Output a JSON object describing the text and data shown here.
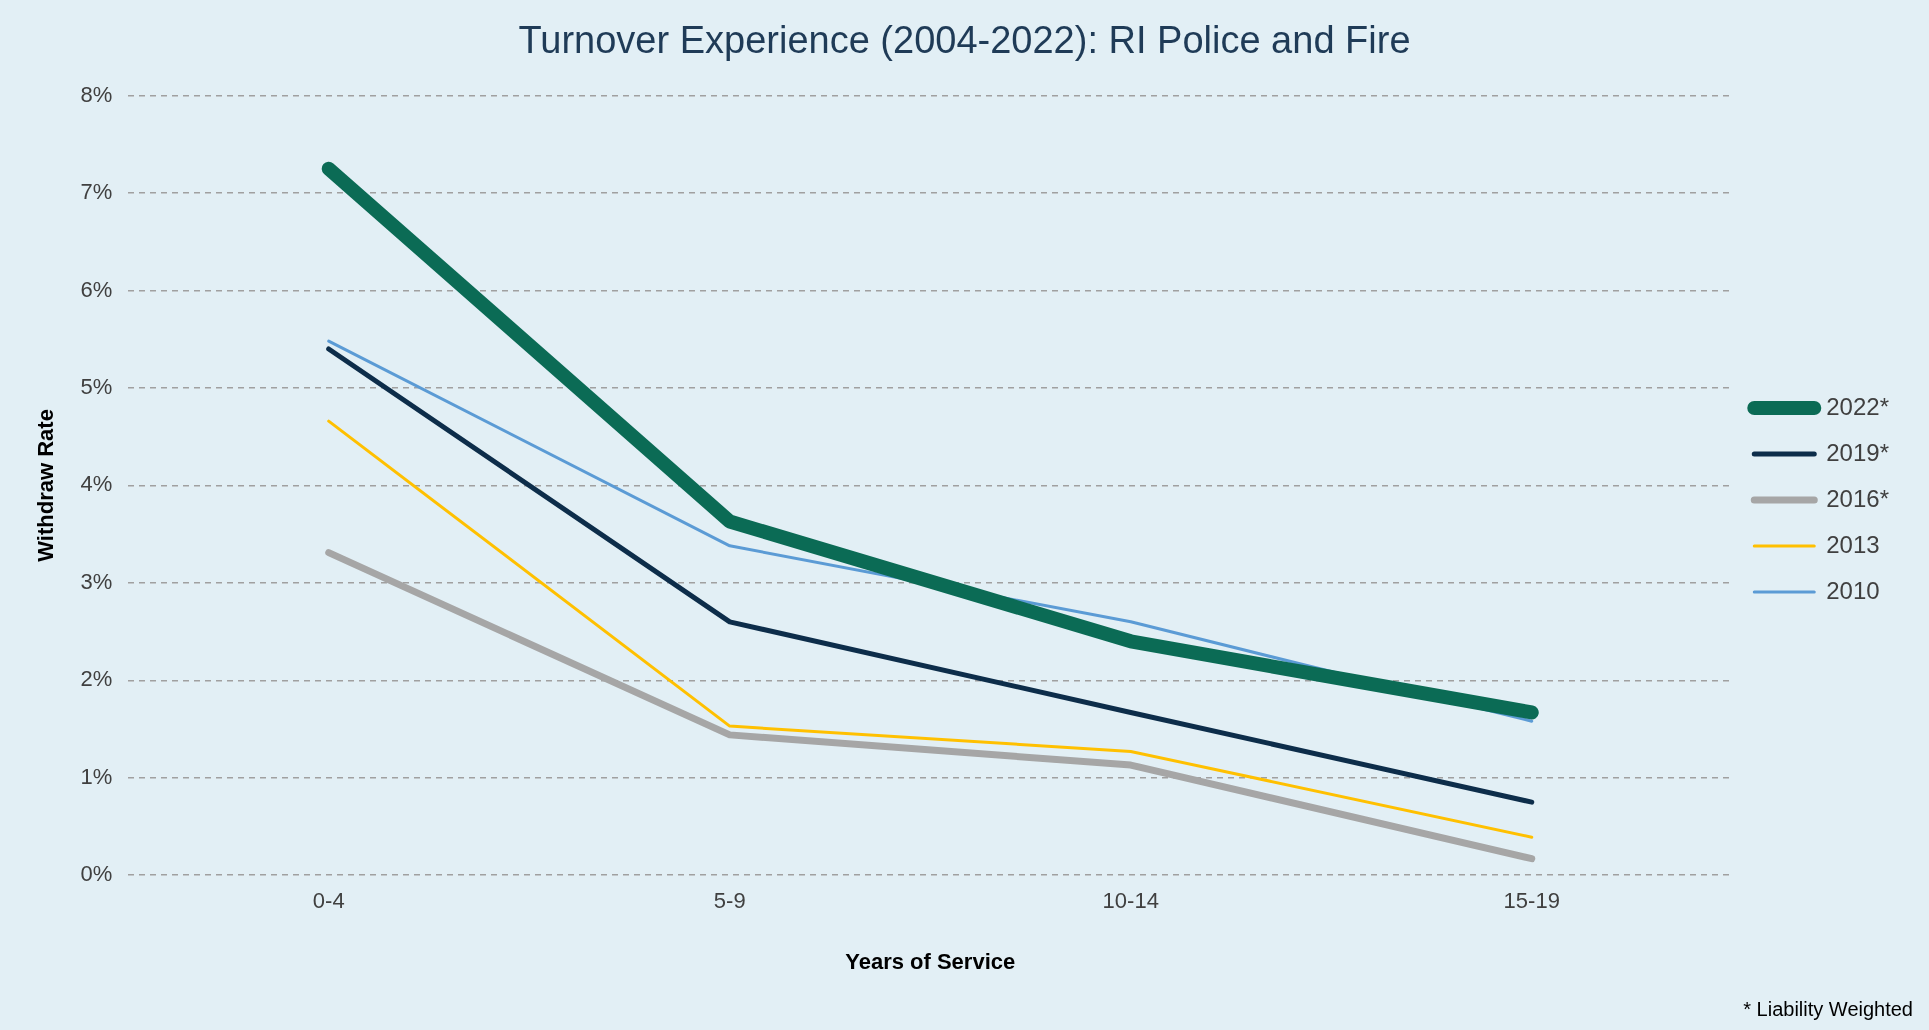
{
  "chart_data": {
    "type": "line",
    "title": "Turnover Experience (2004-2022): RI Police and Fire",
    "xlabel": "Years of Service",
    "ylabel": "Withdraw Rate",
    "categories": [
      "0-4",
      "5-9",
      "10-14",
      "15-19"
    ],
    "series": [
      {
        "name": "2022*",
        "color": "#0b6b55",
        "values": [
          7.25,
          3.63,
          2.4,
          1.67
        ]
      },
      {
        "name": "2019*",
        "color": "#0d2d4a",
        "values": [
          5.4,
          2.6,
          1.67,
          0.75
        ]
      },
      {
        "name": "2016*",
        "color": "#a6a6a6",
        "values": [
          3.31,
          1.44,
          1.13,
          0.17
        ]
      },
      {
        "name": "2013",
        "color": "#ffc000",
        "values": [
          4.66,
          1.53,
          1.27,
          0.39
        ]
      },
      {
        "name": "2010",
        "color": "#5b9bd5",
        "values": [
          5.48,
          3.38,
          2.6,
          1.58
        ]
      }
    ],
    "ylim": [
      0,
      8
    ],
    "yticks": [
      {
        "value": 0,
        "label": "0%"
      },
      {
        "value": 1,
        "label": "1%"
      },
      {
        "value": 2,
        "label": "2%"
      },
      {
        "value": 3,
        "label": "3%"
      },
      {
        "value": 4,
        "label": "4%"
      },
      {
        "value": 5,
        "label": "5%"
      },
      {
        "value": 6,
        "label": "6%"
      },
      {
        "value": 7,
        "label": "7%"
      },
      {
        "value": 8,
        "label": "8%"
      }
    ],
    "grid": "y",
    "legend": "right",
    "marker": "none",
    "line_style": "solid",
    "annotations": [
      "* Liability Weighted"
    ]
  }
}
